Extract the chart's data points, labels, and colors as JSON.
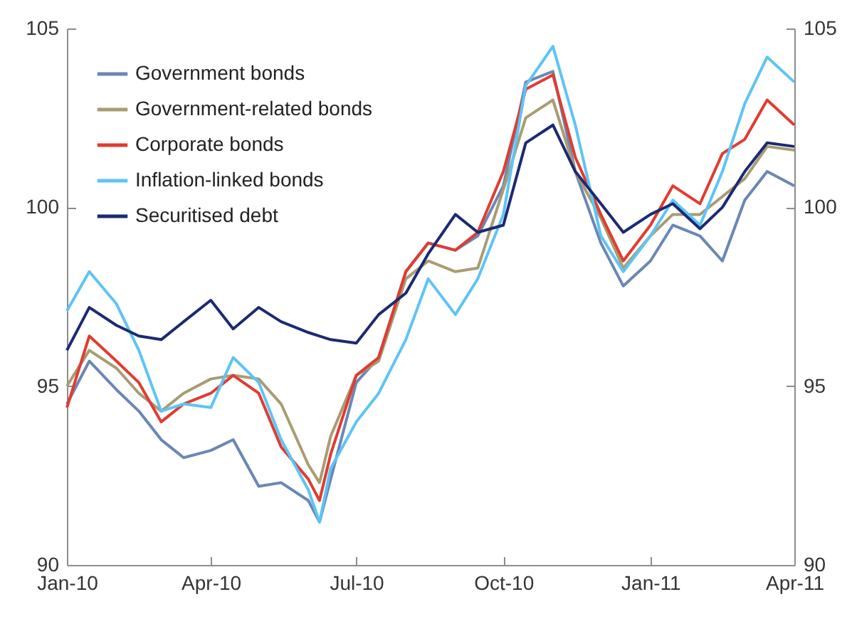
{
  "chart_data": {
    "type": "line",
    "x": [
      "2010-01-01",
      "2010-01-15",
      "2010-02-01",
      "2010-02-15",
      "2010-03-01",
      "2010-03-15",
      "2010-04-01",
      "2010-04-15",
      "2010-05-01",
      "2010-05-15",
      "2010-06-01",
      "2010-06-08",
      "2010-06-15",
      "2010-07-01",
      "2010-07-15",
      "2010-08-01",
      "2010-08-15",
      "2010-09-01",
      "2010-09-15",
      "2010-10-01",
      "2010-10-15",
      "2010-11-01",
      "2010-11-15",
      "2010-12-01",
      "2010-12-15",
      "2011-01-01",
      "2011-01-15",
      "2011-02-01",
      "2011-02-15",
      "2011-03-01",
      "2011-03-15",
      "2011-04-01"
    ],
    "series": [
      {
        "name": "Government bonds",
        "color": "#6a87b5",
        "values": [
          94.5,
          95.7,
          94.9,
          94.3,
          93.5,
          93.0,
          93.2,
          93.5,
          92.2,
          92.3,
          91.8,
          91.2,
          92.4,
          95.1,
          95.8,
          98.2,
          99.0,
          98.8,
          99.2,
          100.6,
          103.5,
          103.8,
          101.0,
          99.0,
          97.8,
          98.5,
          99.5,
          99.2,
          98.5,
          100.2,
          101.0,
          100.6
        ]
      },
      {
        "name": "Government-related bonds",
        "color": "#a89c72",
        "values": [
          95.0,
          96.0,
          95.5,
          94.8,
          94.3,
          94.8,
          95.2,
          95.3,
          95.2,
          94.5,
          92.8,
          92.3,
          93.6,
          95.3,
          95.7,
          98.0,
          98.5,
          98.2,
          98.3,
          100.5,
          102.5,
          103.0,
          101.0,
          99.7,
          98.3,
          99.2,
          99.8,
          99.8,
          100.3,
          100.8,
          101.7,
          101.6
        ]
      },
      {
        "name": "Corporate bonds",
        "color": "#e03c31",
        "values": [
          94.4,
          96.4,
          95.7,
          95.1,
          94.0,
          94.5,
          94.8,
          95.3,
          94.8,
          93.3,
          92.4,
          91.8,
          93.1,
          95.3,
          95.8,
          98.2,
          99.0,
          98.8,
          99.3,
          101.0,
          103.3,
          103.7,
          101.4,
          99.8,
          98.5,
          99.5,
          100.6,
          100.1,
          101.5,
          101.9,
          103.0,
          102.3
        ]
      },
      {
        "name": "Inflation-linked bonds",
        "color": "#5ec4f5",
        "values": [
          97.1,
          98.2,
          97.3,
          96.0,
          94.3,
          94.5,
          94.4,
          95.8,
          95.1,
          93.5,
          92.1,
          91.2,
          92.7,
          94.0,
          94.8,
          96.3,
          98.0,
          97.0,
          98.0,
          99.8,
          103.4,
          104.5,
          102.3,
          99.2,
          98.2,
          99.2,
          100.2,
          99.5,
          101.0,
          102.9,
          104.2,
          103.5
        ]
      },
      {
        "name": "Securitised debt",
        "color": "#1b2a72",
        "values": [
          96.0,
          97.2,
          96.7,
          96.4,
          96.3,
          96.8,
          97.4,
          96.6,
          97.2,
          96.8,
          96.5,
          96.4,
          96.3,
          96.2,
          97.0,
          97.6,
          98.7,
          99.8,
          99.3,
          99.5,
          101.8,
          102.3,
          101.0,
          100.1,
          99.3,
          99.8,
          100.1,
          99.4,
          100.0,
          101.0,
          101.8,
          101.7
        ]
      }
    ],
    "xlim": [
      "2010-01-01",
      "2011-04-01"
    ],
    "xticks": [
      {
        "value": "2010-01-01",
        "label": "Jan-10"
      },
      {
        "value": "2010-04-01",
        "label": "Apr-10"
      },
      {
        "value": "2010-07-01",
        "label": "Jul-10"
      },
      {
        "value": "2010-10-01",
        "label": "Oct-10"
      },
      {
        "value": "2011-01-01",
        "label": "Jan-11"
      },
      {
        "value": "2011-04-01",
        "label": "Apr-11"
      }
    ],
    "ylim": [
      90,
      105
    ],
    "yticks": [
      90,
      95,
      100,
      105
    ],
    "y2lim": [
      90,
      105
    ],
    "y2ticks": [
      90,
      95,
      100,
      105
    ],
    "legend": "top left"
  }
}
